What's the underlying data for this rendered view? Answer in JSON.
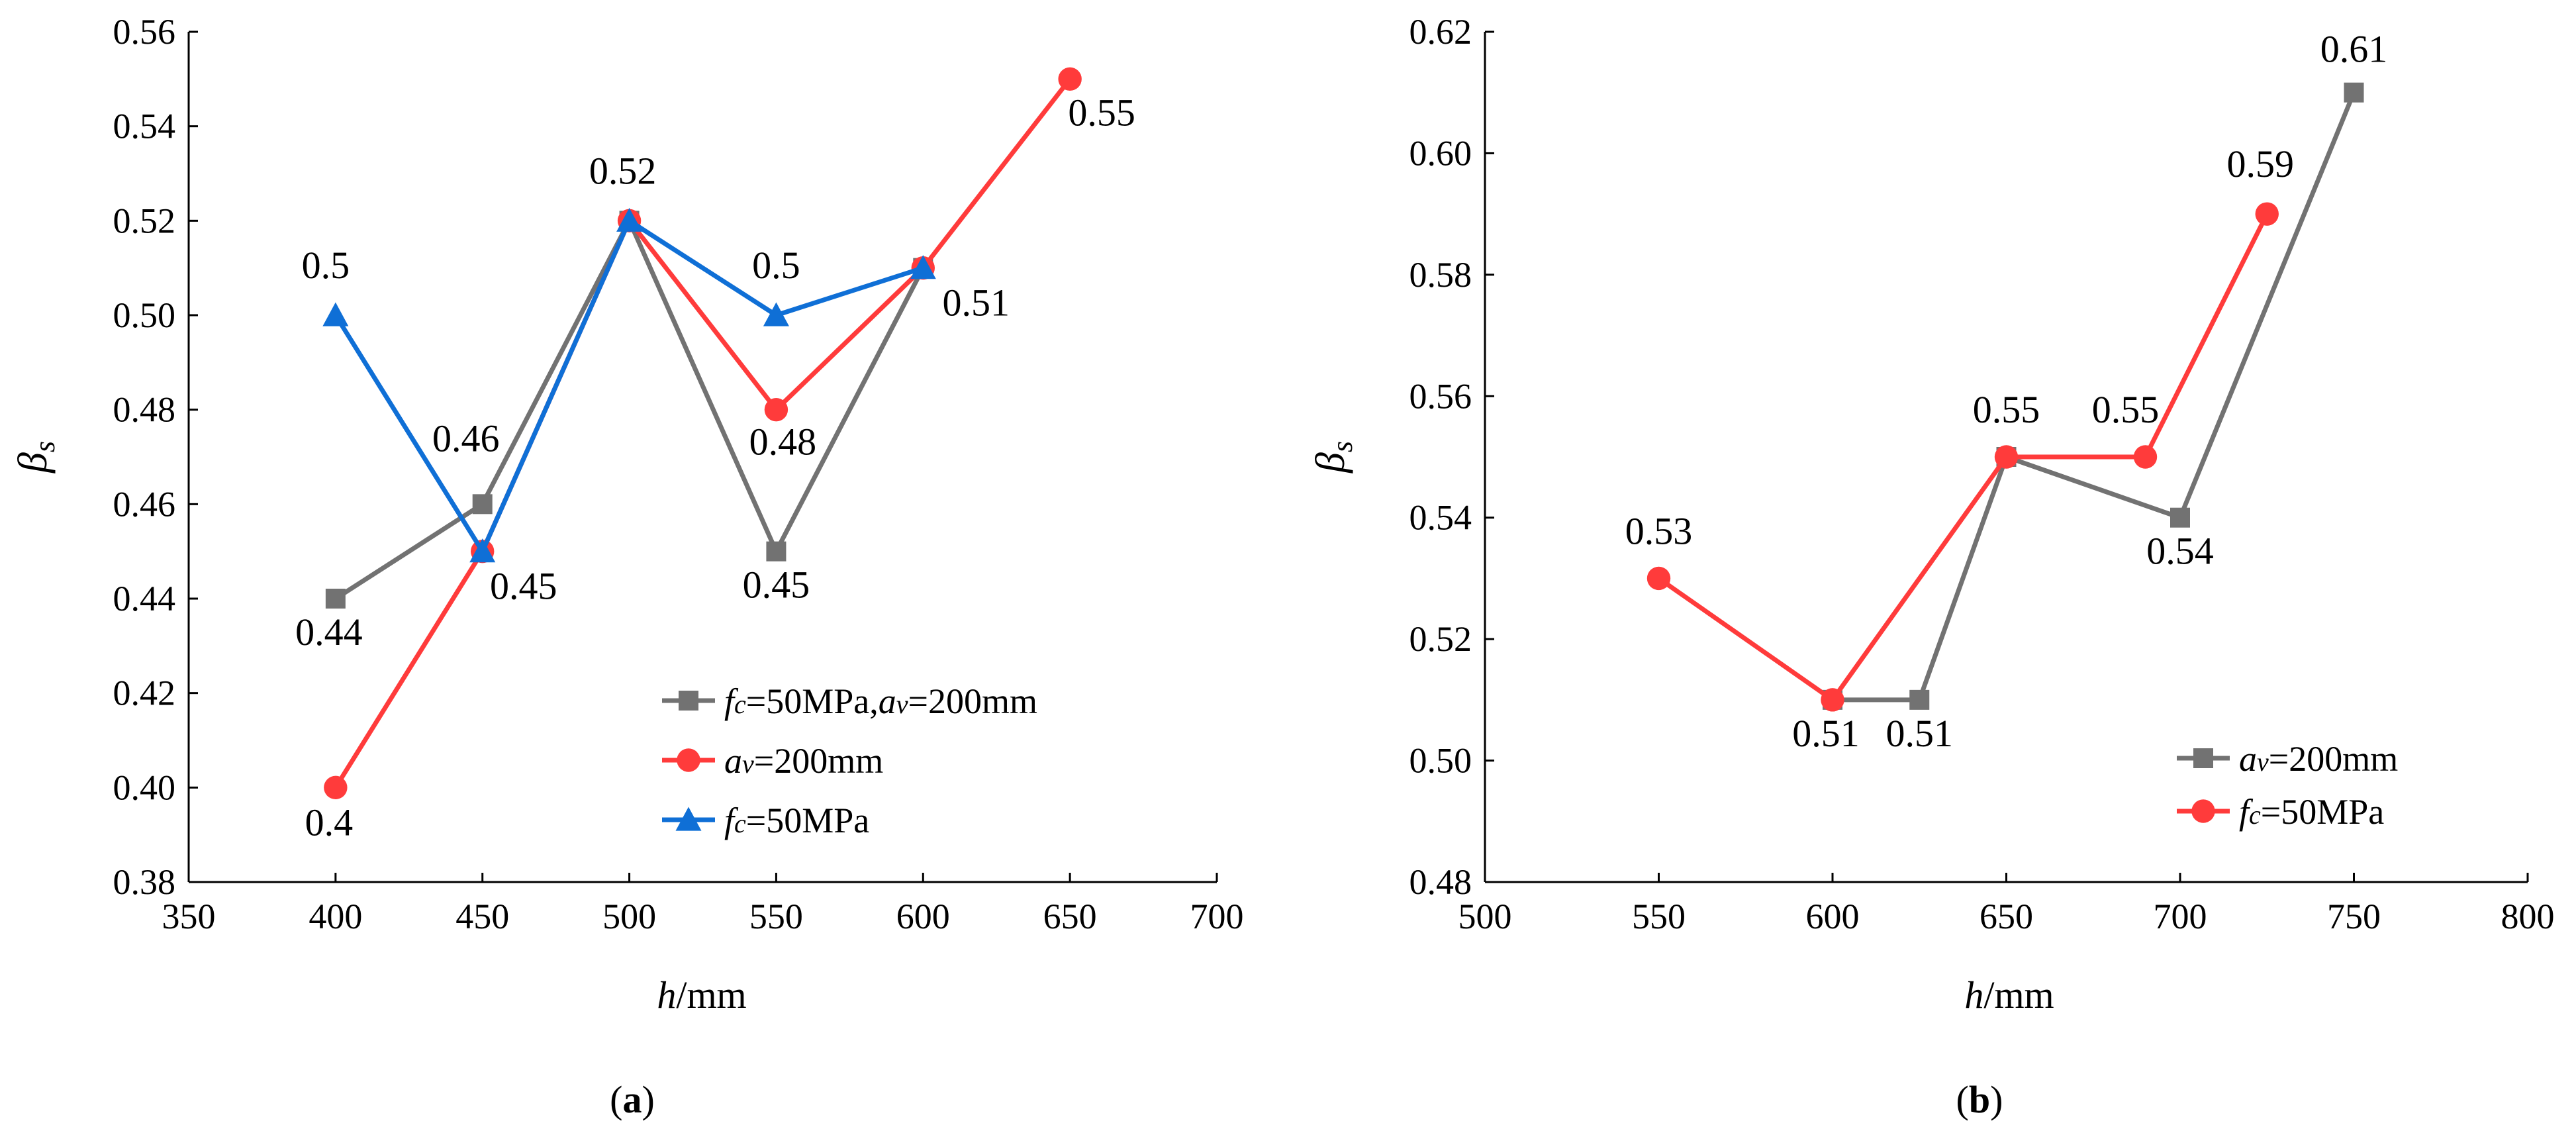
{
  "chart_data": [
    {
      "id": "a",
      "type": "line",
      "panel_label": "a",
      "xlabel": "/mm",
      "xlabel_symbol": "h",
      "ylabel_symbol": "β",
      "ylabel_subscript": "s",
      "xlim": [
        350,
        700
      ],
      "ylim": [
        0.38,
        0.56
      ],
      "xticks": [
        "350",
        "400",
        "450",
        "500",
        "550",
        "600",
        "650",
        "700"
      ],
      "yticks": [
        "0.38",
        "0.40",
        "0.42",
        "0.44",
        "0.46",
        "0.48",
        "0.50",
        "0.52",
        "0.54",
        "0.56"
      ],
      "legend_position": "lower-right",
      "series": [
        {
          "name": "fc=50MPa,av=200mm",
          "legend_parts": [
            {
              "t": "f",
              "style": "italic"
            },
            {
              "t": "c",
              "style": "italic-sub"
            },
            {
              "t": "=50MPa,",
              "style": "normal"
            },
            {
              "t": "a",
              "style": "italic"
            },
            {
              "t": "v",
              "style": "italic-sub"
            },
            {
              "t": "=200mm",
              "style": "normal"
            }
          ],
          "color": "#727272",
          "marker": "square",
          "x": [
            400,
            450,
            500,
            550,
            600
          ],
          "y": [
            0.44,
            0.46,
            0.52,
            0.45,
            0.51
          ],
          "labels": [
            "0.44",
            "0.46",
            "",
            "0.45",
            ""
          ]
        },
        {
          "name": "av=200mm",
          "legend_parts": [
            {
              "t": "a",
              "style": "italic"
            },
            {
              "t": "v",
              "style": "italic-sub"
            },
            {
              "t": "=200mm",
              "style": "normal"
            }
          ],
          "color": "#ff3b3b",
          "marker": "circle",
          "x": [
            400,
            450,
            500,
            550,
            600,
            650
          ],
          "y": [
            0.4,
            0.45,
            0.52,
            0.48,
            0.51,
            0.55
          ],
          "labels": [
            "0.4",
            "",
            "0.52",
            "0.48",
            "0.51",
            "0.55"
          ]
        },
        {
          "name": "fc=50MPa",
          "legend_parts": [
            {
              "t": "f",
              "style": "italic"
            },
            {
              "t": "c",
              "style": "italic-sub"
            },
            {
              "t": "=50MPa",
              "style": "normal"
            }
          ],
          "color": "#0f6fd6",
          "marker": "triangle",
          "x": [
            400,
            450,
            500,
            550,
            600
          ],
          "y": [
            0.5,
            0.45,
            0.52,
            0.5,
            0.51
          ],
          "labels": [
            "0.5",
            "0.45",
            "",
            "0.5",
            ""
          ]
        }
      ]
    },
    {
      "id": "b",
      "type": "line",
      "panel_label": "b",
      "xlabel": "/mm",
      "xlabel_symbol": "h",
      "ylabel_symbol": "β",
      "ylabel_subscript": "s",
      "xlim": [
        500,
        800
      ],
      "ylim": [
        0.48,
        0.62
      ],
      "xticks": [
        "500",
        "550",
        "600",
        "650",
        "700",
        "750",
        "800"
      ],
      "yticks": [
        "0.48",
        "0.50",
        "0.52",
        "0.54",
        "0.56",
        "0.58",
        "0.60",
        "0.62"
      ],
      "legend_position": "lower-right",
      "series": [
        {
          "name": "av=200mm",
          "legend_parts": [
            {
              "t": "a",
              "style": "italic"
            },
            {
              "t": "v",
              "style": "italic-sub"
            },
            {
              "t": "=200mm",
              "style": "normal"
            }
          ],
          "color": "#727272",
          "marker": "square",
          "x": [
            600,
            625,
            650,
            700,
            750
          ],
          "y": [
            0.51,
            0.51,
            0.55,
            0.54,
            0.61
          ],
          "labels": [
            "",
            "0.51",
            "",
            "0.54",
            "0.61"
          ]
        },
        {
          "name": "fc=50MPa",
          "legend_parts": [
            {
              "t": "f",
              "style": "italic"
            },
            {
              "t": "c",
              "style": "italic-sub"
            },
            {
              "t": "=50MPa",
              "style": "normal"
            }
          ],
          "color": "#ff3b3b",
          "marker": "circle",
          "x": [
            550,
            600,
            650,
            690,
            725
          ],
          "y": [
            0.53,
            0.51,
            0.55,
            0.55,
            0.59
          ],
          "labels": [
            "0.53",
            "0.51",
            "0.55",
            "0.55",
            "0.59"
          ]
        }
      ]
    }
  ]
}
